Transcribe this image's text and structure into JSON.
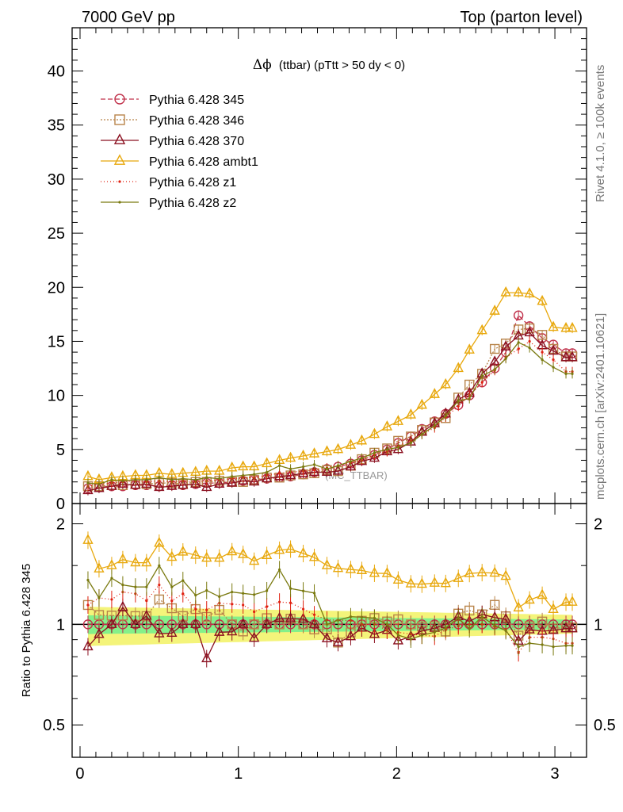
{
  "header": {
    "left": "7000 GeV pp",
    "right": "Top (parton level)"
  },
  "side_labels": {
    "top": "Rivet 4.1.0, ≥ 100k events",
    "bottom": "mcplots.cern.ch [arXiv:2401.10621]"
  },
  "chart_data": {
    "type": "line",
    "title_prefix": "Δϕ",
    "title": "(ttbar) (pTtt > 50 dy < 0)",
    "watermark": "(MC_TTBAR)",
    "xlabel": "",
    "ylabel": "",
    "ratio_ylabel": "Ratio to Pythia 6.428 345",
    "xlim": [
      -0.05,
      3.2
    ],
    "ylim": [
      0,
      44
    ],
    "ratio_ylim": [
      0.4,
      2.3
    ],
    "x_ticks": [
      "0",
      "1",
      "2",
      "3"
    ],
    "y_ticks": [
      "0",
      "5",
      "10",
      "15",
      "20",
      "25",
      "30",
      "35",
      "40"
    ],
    "ratio_ticks": [
      "0.5",
      "1",
      "2"
    ],
    "x": [
      0.05,
      0.12,
      0.2,
      0.27,
      0.35,
      0.42,
      0.5,
      0.58,
      0.65,
      0.73,
      0.8,
      0.88,
      0.96,
      1.03,
      1.1,
      1.18,
      1.26,
      1.33,
      1.41,
      1.48,
      1.56,
      1.63,
      1.71,
      1.78,
      1.86,
      1.94,
      2.01,
      2.09,
      2.16,
      2.24,
      2.31,
      2.39,
      2.46,
      2.54,
      2.62,
      2.69,
      2.77,
      2.84,
      2.92,
      2.99,
      3.07,
      3.11
    ],
    "series": [
      {
        "name": "Pythia 6.428 345",
        "color": "#c0304a",
        "marker": "circle",
        "dash": "6,3",
        "values": [
          1.4,
          1.5,
          1.6,
          1.6,
          1.7,
          1.7,
          1.6,
          1.7,
          1.7,
          1.8,
          1.9,
          1.9,
          2.0,
          2.1,
          2.2,
          2.3,
          2.4,
          2.5,
          2.7,
          2.9,
          3.2,
          3.4,
          3.7,
          4.0,
          4.5,
          5.0,
          5.6,
          6.2,
          6.9,
          7.6,
          8.3,
          9.1,
          10.0,
          11.2,
          12.5,
          14.0,
          17.4,
          16.4,
          15.3,
          14.7,
          13.9,
          13.9
        ]
      },
      {
        "name": "Pythia 6.428 346",
        "color": "#b8844a",
        "marker": "square",
        "dash": "2,2",
        "values": [
          1.6,
          1.6,
          1.7,
          1.7,
          1.8,
          1.8,
          1.9,
          1.9,
          1.8,
          2.0,
          2.0,
          2.1,
          2.0,
          2.0,
          2.2,
          2.4,
          2.4,
          2.6,
          2.7,
          2.8,
          3.1,
          3.0,
          3.5,
          4.1,
          4.7,
          5.1,
          5.8,
          6.2,
          6.8,
          7.5,
          7.9,
          9.8,
          11.0,
          12.0,
          14.3,
          14.8,
          16.1,
          16.2,
          15.6,
          14.3,
          13.6,
          13.6
        ]
      },
      {
        "name": "Pythia 6.428 370",
        "color": "#8b1020",
        "marker": "triangle",
        "dash": "",
        "values": [
          1.2,
          1.4,
          1.6,
          1.8,
          1.7,
          1.8,
          1.5,
          1.6,
          1.7,
          1.8,
          1.5,
          1.8,
          1.9,
          2.1,
          2.0,
          2.3,
          2.5,
          2.6,
          2.8,
          2.9,
          2.9,
          3.0,
          3.4,
          3.9,
          4.2,
          4.8,
          5.0,
          5.7,
          6.6,
          7.4,
          8.3,
          9.6,
          10.2,
          12.0,
          13.1,
          14.5,
          15.5,
          15.8,
          14.6,
          14.1,
          13.5,
          13.5
        ]
      },
      {
        "name": "Pythia 6.428 ambt1",
        "color": "#e8a80c",
        "marker": "triangle",
        "dash": "",
        "values": [
          2.5,
          2.2,
          2.4,
          2.5,
          2.6,
          2.6,
          2.8,
          2.7,
          2.8,
          2.9,
          3.0,
          3.0,
          3.3,
          3.4,
          3.4,
          3.7,
          4.0,
          4.2,
          4.4,
          4.6,
          4.8,
          5.0,
          5.4,
          5.8,
          6.4,
          7.1,
          7.6,
          8.2,
          9.1,
          10.1,
          11.0,
          12.5,
          14.2,
          16.0,
          17.8,
          19.5,
          19.5,
          19.4,
          18.7,
          16.3,
          16.2,
          16.2
        ]
      },
      {
        "name": "Pythia 6.428 z1",
        "color": "#e02010",
        "marker": "dot",
        "dash": "1,3",
        "values": [
          1.6,
          1.8,
          1.9,
          2.0,
          2.1,
          2.0,
          2.1,
          2.0,
          2.1,
          2.0,
          2.1,
          2.2,
          2.3,
          2.4,
          2.4,
          2.6,
          2.8,
          2.9,
          3.0,
          3.1,
          3.3,
          3.5,
          3.8,
          4.0,
          4.5,
          4.8,
          5.3,
          5.8,
          6.4,
          7.0,
          8.0,
          9.0,
          10.0,
          11.2,
          12.3,
          13.5,
          14.3,
          15.0,
          14.0,
          13.3,
          12.2,
          12.2
        ]
      },
      {
        "name": "Pythia 6.428 z2",
        "color": "#7a7a10",
        "marker": "dot",
        "dash": "",
        "values": [
          1.9,
          1.8,
          2.2,
          2.1,
          2.2,
          2.2,
          2.4,
          2.2,
          2.3,
          2.2,
          2.4,
          2.3,
          2.5,
          2.6,
          2.7,
          2.9,
          3.5,
          3.2,
          3.4,
          3.6,
          3.2,
          3.5,
          3.9,
          4.2,
          4.7,
          5.0,
          5.2,
          5.6,
          6.4,
          7.2,
          8.1,
          9.5,
          9.7,
          11.8,
          12.4,
          13.4,
          14.9,
          14.4,
          13.3,
          12.6,
          12.0,
          12.0
        ]
      }
    ]
  }
}
